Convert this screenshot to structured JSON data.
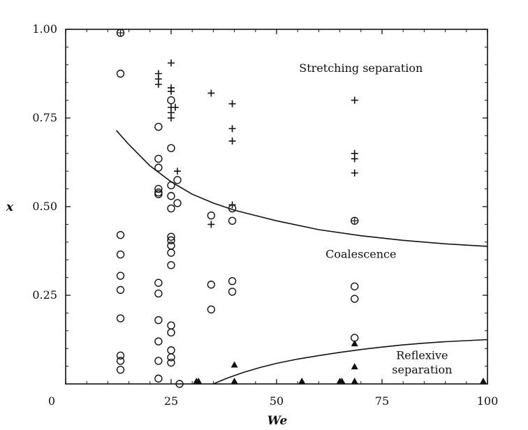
{
  "page_header": "",
  "chart_data": {
    "type": "scatter",
    "title": "",
    "xlabel": "We",
    "ylabel": "x",
    "xlim": [
      0,
      100
    ],
    "ylim": [
      0,
      1
    ],
    "grid": false,
    "x_ticks": [
      {
        "value": 0,
        "label": "0"
      },
      {
        "value": 25,
        "label": "25"
      },
      {
        "value": 50,
        "label": "50"
      },
      {
        "value": 75,
        "label": "75"
      },
      {
        "value": 100,
        "label": "100"
      }
    ],
    "y_ticks": [
      {
        "value": 0.25,
        "label": "0.25"
      },
      {
        "value": 0.5,
        "label": "0.50"
      },
      {
        "value": 0.75,
        "label": "0.75"
      },
      {
        "value": 1.0,
        "label": "1.00"
      }
    ],
    "annotations": [
      {
        "id": "stretching",
        "text": "Stretching separation",
        "x": 70,
        "y": 0.88
      },
      {
        "id": "coalescence",
        "text": "Coalescence",
        "x": 70,
        "y": 0.355
      },
      {
        "id": "reflexive-1",
        "text": "Reflexive",
        "x": 84.5,
        "y": 0.07
      },
      {
        "id": "reflexive-2",
        "text": "separation",
        "x": 84.5,
        "y": 0.03
      }
    ],
    "series": [
      {
        "marker": "circle",
        "points": [
          [
            13,
            0.875
          ],
          [
            13,
            0.42
          ],
          [
            13,
            0.365
          ],
          [
            13,
            0.305
          ],
          [
            13,
            0.265
          ],
          [
            13,
            0.185
          ],
          [
            13,
            0.08
          ],
          [
            13,
            0.065
          ],
          [
            13,
            0.04
          ],
          [
            22,
            0.725
          ],
          [
            22,
            0.635
          ],
          [
            22,
            0.61
          ],
          [
            22,
            0.55
          ],
          [
            22,
            0.54
          ],
          [
            22,
            0.535
          ],
          [
            22,
            0.285
          ],
          [
            22,
            0.255
          ],
          [
            22,
            0.18
          ],
          [
            22,
            0.12
          ],
          [
            22,
            0.065
          ],
          [
            22,
            0.015
          ],
          [
            25,
            0.8
          ],
          [
            25,
            0.665
          ],
          [
            25,
            0.56
          ],
          [
            25,
            0.53
          ],
          [
            25,
            0.495
          ],
          [
            25,
            0.415
          ],
          [
            25,
            0.405
          ],
          [
            25,
            0.39
          ],
          [
            25,
            0.37
          ],
          [
            25,
            0.335
          ],
          [
            25,
            0.165
          ],
          [
            25,
            0.145
          ],
          [
            25,
            0.095
          ],
          [
            25,
            0.075
          ],
          [
            25,
            0.06
          ],
          [
            26.5,
            0.575
          ],
          [
            26.5,
            0.51
          ],
          [
            27,
            0.0
          ],
          [
            34.5,
            0.475
          ],
          [
            34.5,
            0.28
          ],
          [
            34.5,
            0.21
          ],
          [
            39.5,
            0.495
          ],
          [
            39.5,
            0.46
          ],
          [
            39.5,
            0.29
          ],
          [
            39.5,
            0.26
          ],
          [
            68.5,
            0.275
          ],
          [
            68.5,
            0.24
          ],
          [
            68.5,
            0.13
          ]
        ]
      },
      {
        "marker": "plus",
        "points": [
          [
            22,
            0.875
          ],
          [
            22,
            0.86
          ],
          [
            22,
            0.845
          ],
          [
            25,
            0.905
          ],
          [
            25,
            0.835
          ],
          [
            25,
            0.825
          ],
          [
            25,
            0.78
          ],
          [
            25,
            0.765
          ],
          [
            25,
            0.75
          ],
          [
            26,
            0.78
          ],
          [
            26.5,
            0.6
          ],
          [
            34.5,
            0.82
          ],
          [
            34.5,
            0.45
          ],
          [
            39.5,
            0.79
          ],
          [
            39.5,
            0.72
          ],
          [
            39.5,
            0.685
          ],
          [
            39.5,
            0.505
          ],
          [
            68.5,
            0.8
          ],
          [
            68.5,
            0.65
          ],
          [
            68.5,
            0.635
          ],
          [
            68.5,
            0.595
          ]
        ]
      },
      {
        "marker": "circle-plus",
        "points": [
          [
            13,
            0.99
          ],
          [
            68.5,
            0.46
          ]
        ]
      },
      {
        "marker": "triangle",
        "points": [
          [
            31,
            0.0
          ],
          [
            31.5,
            0.0
          ],
          [
            40,
            0.055
          ],
          [
            40,
            0.0
          ],
          [
            56,
            0.0
          ],
          [
            65,
            0.0
          ],
          [
            65.5,
            0.0
          ],
          [
            68.5,
            0.115
          ],
          [
            68.5,
            0.05
          ],
          [
            68.5,
            0.0
          ],
          [
            99,
            0.0
          ]
        ]
      }
    ],
    "curves": [
      {
        "name": "",
        "points": [
          [
            12,
            0.715
          ],
          [
            15,
            0.675
          ],
          [
            20,
            0.615
          ],
          [
            25,
            0.57
          ],
          [
            30,
            0.535
          ],
          [
            35,
            0.51
          ],
          [
            40,
            0.49
          ],
          [
            50,
            0.46
          ],
          [
            60,
            0.435
          ],
          [
            70,
            0.418
          ],
          [
            80,
            0.405
          ],
          [
            90,
            0.395
          ],
          [
            100,
            0.388
          ]
        ]
      },
      {
        "name": "",
        "points": [
          [
            35,
            0.0
          ],
          [
            38,
            0.015
          ],
          [
            42,
            0.032
          ],
          [
            46,
            0.046
          ],
          [
            50,
            0.058
          ],
          [
            55,
            0.07
          ],
          [
            60,
            0.08
          ],
          [
            65,
            0.089
          ],
          [
            70,
            0.097
          ],
          [
            75,
            0.104
          ],
          [
            80,
            0.11
          ],
          [
            85,
            0.115
          ],
          [
            90,
            0.119
          ],
          [
            95,
            0.122
          ],
          [
            100,
            0.125
          ]
        ]
      }
    ]
  }
}
